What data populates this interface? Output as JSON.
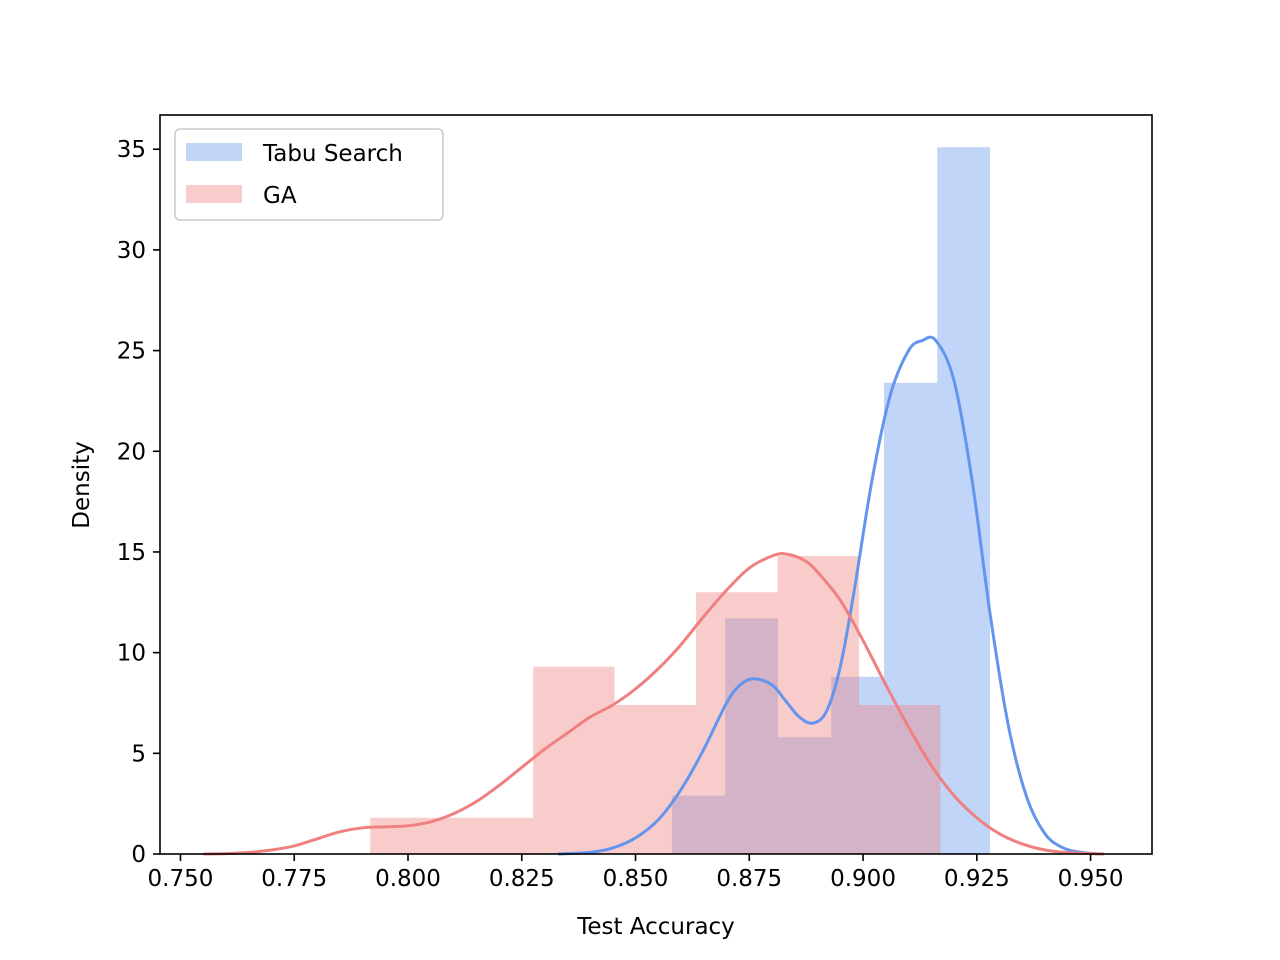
{
  "colors": {
    "tabu_search": "#6495ED",
    "ga": "#F08080"
  },
  "chart_data": {
    "type": "bar",
    "xlabel": "Test Accuracy",
    "ylabel": "Density",
    "xlim": [
      0.7455,
      0.9635
    ],
    "ylim": [
      0,
      36.7
    ],
    "xticks": [
      "0.750",
      "0.775",
      "0.800",
      "0.825",
      "0.850",
      "0.875",
      "0.900",
      "0.925",
      "0.950"
    ],
    "yticks": [
      "0",
      "5",
      "10",
      "15",
      "20",
      "25",
      "30",
      "35"
    ],
    "legend": {
      "placement": "top-left",
      "entries": [
        "Tabu Search",
        "GA"
      ]
    },
    "grid": false,
    "series": [
      {
        "name": "Tabu Search",
        "type": "histogram",
        "bins": [
          {
            "x0": 0.858,
            "x1": 0.8697,
            "density": 2.9
          },
          {
            "x0": 0.8697,
            "x1": 0.8813,
            "density": 11.7
          },
          {
            "x0": 0.8813,
            "x1": 0.893,
            "density": 5.8
          },
          {
            "x0": 0.893,
            "x1": 0.9046,
            "density": 8.8
          },
          {
            "x0": 0.9046,
            "x1": 0.9163,
            "density": 23.4
          },
          {
            "x0": 0.9163,
            "x1": 0.9279,
            "density": 35.1
          }
        ],
        "kde": [
          [
            0.833,
            0.0
          ],
          [
            0.84,
            0.08
          ],
          [
            0.845,
            0.3
          ],
          [
            0.85,
            0.8
          ],
          [
            0.855,
            1.7
          ],
          [
            0.86,
            3.2
          ],
          [
            0.865,
            5.2
          ],
          [
            0.87,
            7.5
          ],
          [
            0.873,
            8.4
          ],
          [
            0.876,
            8.7
          ],
          [
            0.88,
            8.4
          ],
          [
            0.883,
            7.6
          ],
          [
            0.886,
            6.8
          ],
          [
            0.889,
            6.5
          ],
          [
            0.892,
            7.1
          ],
          [
            0.895,
            9.3
          ],
          [
            0.898,
            13.0
          ],
          [
            0.902,
            18.6
          ],
          [
            0.906,
            22.8
          ],
          [
            0.91,
            25.0
          ],
          [
            0.913,
            25.5
          ],
          [
            0.916,
            25.5
          ],
          [
            0.92,
            23.5
          ],
          [
            0.924,
            18.5
          ],
          [
            0.928,
            11.8
          ],
          [
            0.932,
            6.3
          ],
          [
            0.936,
            2.8
          ],
          [
            0.94,
            1.0
          ],
          [
            0.944,
            0.3
          ],
          [
            0.948,
            0.08
          ],
          [
            0.952,
            0.0
          ]
        ]
      },
      {
        "name": "GA",
        "type": "histogram",
        "bins": [
          {
            "x0": 0.7917,
            "x1": 0.8096,
            "density": 1.8
          },
          {
            "x0": 0.8096,
            "x1": 0.8275,
            "density": 1.8
          },
          {
            "x0": 0.8275,
            "x1": 0.8454,
            "density": 9.3
          },
          {
            "x0": 0.8454,
            "x1": 0.8633,
            "density": 7.4
          },
          {
            "x0": 0.8633,
            "x1": 0.8812,
            "density": 13.0
          },
          {
            "x0": 0.8812,
            "x1": 0.8991,
            "density": 14.8
          },
          {
            "x0": 0.8991,
            "x1": 0.917,
            "density": 7.4
          }
        ],
        "kde": [
          [
            0.755,
            0.0
          ],
          [
            0.76,
            0.02
          ],
          [
            0.765,
            0.08
          ],
          [
            0.77,
            0.2
          ],
          [
            0.775,
            0.4
          ],
          [
            0.78,
            0.75
          ],
          [
            0.785,
            1.1
          ],
          [
            0.79,
            1.3
          ],
          [
            0.795,
            1.35
          ],
          [
            0.8,
            1.4
          ],
          [
            0.805,
            1.6
          ],
          [
            0.81,
            2.0
          ],
          [
            0.815,
            2.6
          ],
          [
            0.82,
            3.4
          ],
          [
            0.825,
            4.3
          ],
          [
            0.83,
            5.2
          ],
          [
            0.835,
            6.0
          ],
          [
            0.84,
            6.8
          ],
          [
            0.845,
            7.4
          ],
          [
            0.85,
            8.2
          ],
          [
            0.855,
            9.2
          ],
          [
            0.86,
            10.4
          ],
          [
            0.865,
            11.8
          ],
          [
            0.87,
            13.1
          ],
          [
            0.875,
            14.2
          ],
          [
            0.88,
            14.8
          ],
          [
            0.883,
            14.9
          ],
          [
            0.887,
            14.6
          ],
          [
            0.89,
            14.0
          ],
          [
            0.895,
            12.6
          ],
          [
            0.9,
            10.6
          ],
          [
            0.905,
            8.4
          ],
          [
            0.91,
            6.3
          ],
          [
            0.915,
            4.4
          ],
          [
            0.92,
            2.9
          ],
          [
            0.925,
            1.8
          ],
          [
            0.93,
            1.0
          ],
          [
            0.935,
            0.5
          ],
          [
            0.94,
            0.2
          ],
          [
            0.945,
            0.07
          ],
          [
            0.953,
            0.0
          ]
        ]
      }
    ]
  }
}
